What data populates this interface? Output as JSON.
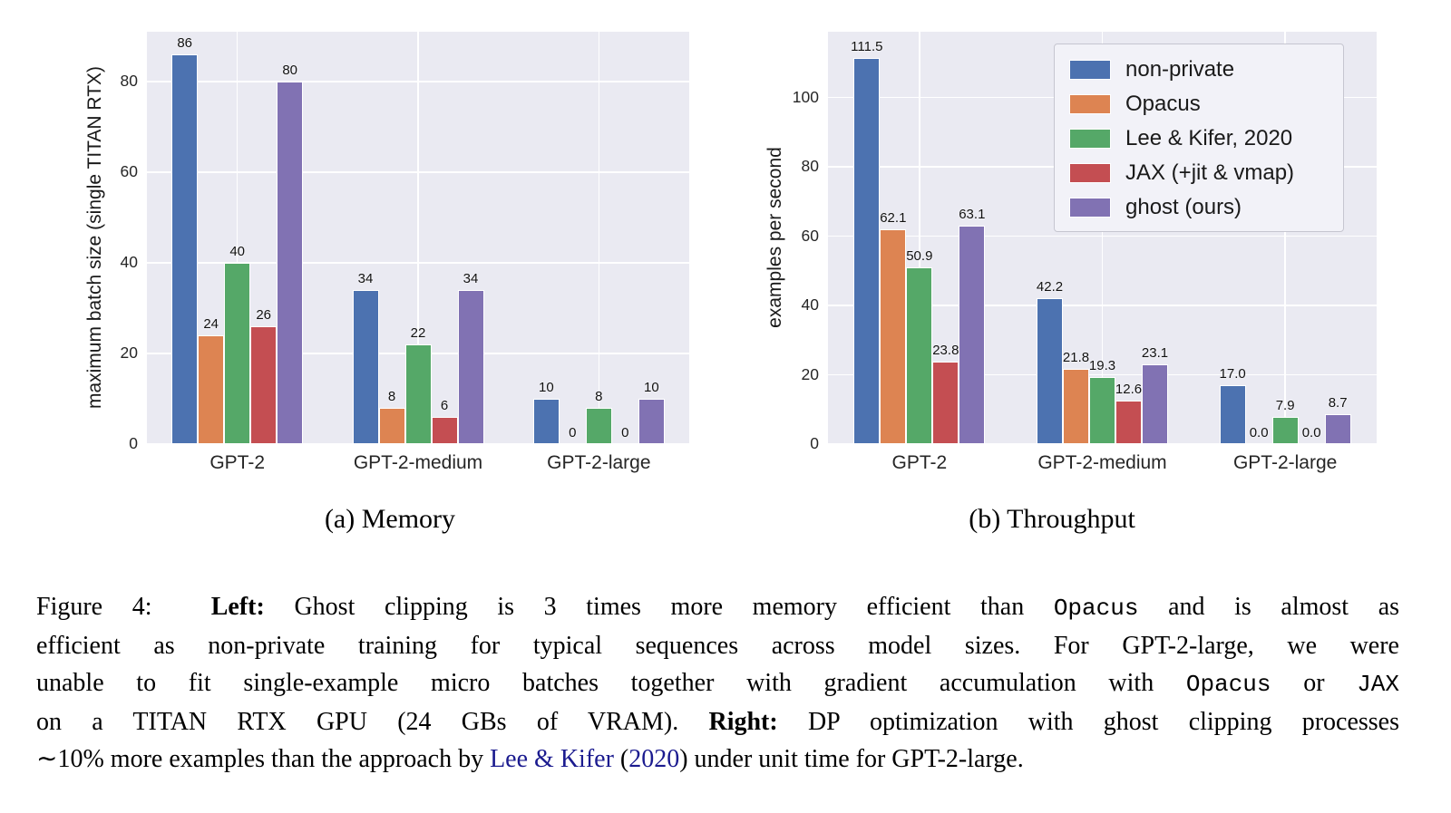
{
  "page": {
    "background": "#ffffff"
  },
  "colors": {
    "plot_background": "#eaeaf2",
    "gridline": "#ffffff",
    "axis_text": "#262626",
    "bar_edge": "#ffffff",
    "link": "#1b1b8f",
    "palette": {
      "non_private": "#4C72B0",
      "opacus": "#DD8452",
      "lee_kifer": "#55A868",
      "jax": "#C44E52",
      "ghost": "#8172B3"
    }
  },
  "chart_data": [
    {
      "id": "memory",
      "type": "bar",
      "subcaption": "(a) Memory",
      "title": "",
      "xlabel": "",
      "ylabel": "maximum batch size (single TITAN RTX)",
      "yticks": [
        0,
        20,
        40,
        60,
        80
      ],
      "ylim": [
        0,
        91
      ],
      "grid": true,
      "categories": [
        "GPT-2",
        "GPT-2-medium",
        "GPT-2-large"
      ],
      "series": [
        {
          "name": "non-private",
          "color": "#4C72B0",
          "values": [
            86,
            34,
            10
          ],
          "labels": [
            "86",
            "34",
            "10"
          ]
        },
        {
          "name": "Opacus",
          "color": "#DD8452",
          "values": [
            24,
            8,
            0
          ],
          "labels": [
            "24",
            "8",
            "0"
          ]
        },
        {
          "name": "Lee & Kifer, 2020",
          "color": "#55A868",
          "values": [
            40,
            22,
            8
          ],
          "labels": [
            "40",
            "22",
            "8"
          ]
        },
        {
          "name": "JAX (+jit & vmap)",
          "color": "#C44E52",
          "values": [
            26,
            6,
            0
          ],
          "labels": [
            "26",
            "6",
            "0"
          ]
        },
        {
          "name": "ghost (ours)",
          "color": "#8172B3",
          "values": [
            80,
            34,
            10
          ],
          "labels": [
            "80",
            "34",
            "10"
          ]
        }
      ],
      "legend": {
        "visible": false
      }
    },
    {
      "id": "throughput",
      "type": "bar",
      "subcaption": "(b) Throughput",
      "title": "",
      "xlabel": "",
      "ylabel": "examples per second",
      "yticks": [
        0,
        20,
        40,
        60,
        80,
        100
      ],
      "ylim": [
        0,
        119
      ],
      "grid": true,
      "categories": [
        "GPT-2",
        "GPT-2-medium",
        "GPT-2-large"
      ],
      "series": [
        {
          "name": "non-private",
          "color": "#4C72B0",
          "values": [
            111.5,
            42.2,
            17.0
          ],
          "labels": [
            "111.5",
            "42.2",
            "17.0"
          ]
        },
        {
          "name": "Opacus",
          "color": "#DD8452",
          "values": [
            62.1,
            21.8,
            0.0
          ],
          "labels": [
            "62.1",
            "21.8",
            "0.0"
          ]
        },
        {
          "name": "Lee & Kifer, 2020",
          "color": "#55A868",
          "values": [
            50.9,
            19.3,
            7.9
          ],
          "labels": [
            "50.9",
            "19.3",
            "7.9"
          ]
        },
        {
          "name": "JAX (+jit & vmap)",
          "color": "#C44E52",
          "values": [
            23.8,
            12.6,
            0.0
          ],
          "labels": [
            "23.8",
            "12.6",
            "0.0"
          ]
        },
        {
          "name": "ghost (ours)",
          "color": "#8172B3",
          "values": [
            63.1,
            23.1,
            8.7
          ],
          "labels": [
            "63.1",
            "23.1",
            "8.7"
          ]
        }
      ],
      "legend": {
        "visible": true,
        "position": "upper right",
        "entries": [
          "non-private",
          "Opacus",
          "Lee & Kifer, 2020",
          "JAX (+jit & vmap)",
          "ghost (ours)"
        ]
      }
    }
  ],
  "caption": {
    "lines": [
      [
        {
          "t": "Figure 4:  ",
          "s": "normal"
        },
        {
          "t": "Left:",
          "s": "bold"
        },
        {
          "t": " Ghost clipping is 3 times more memory efficient than ",
          "s": "normal"
        },
        {
          "t": "Opacus",
          "s": "mono"
        },
        {
          "t": " and is almost as",
          "s": "normal"
        }
      ],
      [
        {
          "t": "efficient as non-private training for typical sequences across model sizes. For GPT-2-large, we were",
          "s": "normal"
        }
      ],
      [
        {
          "t": "unable to fit single-example micro batches together with gradient accumulation with ",
          "s": "normal"
        },
        {
          "t": "Opacus",
          "s": "mono"
        },
        {
          "t": " or ",
          "s": "normal"
        },
        {
          "t": "JAX",
          "s": "mono"
        }
      ],
      [
        {
          "t": "on a TITAN RTX GPU (24 GBs of VRAM). ",
          "s": "normal"
        },
        {
          "t": "Right:",
          "s": "bold"
        },
        {
          "t": " DP optimization with ghost clipping processes",
          "s": "normal"
        }
      ],
      [
        {
          "t": "∼10% more examples than the approach by ",
          "s": "normal"
        },
        {
          "t": "Lee & Kifer",
          "s": "link"
        },
        {
          "t": " (",
          "s": "normal"
        },
        {
          "t": "2020",
          "s": "link"
        },
        {
          "t": ") under unit time for GPT-2-large.",
          "s": "normal"
        }
      ]
    ]
  }
}
